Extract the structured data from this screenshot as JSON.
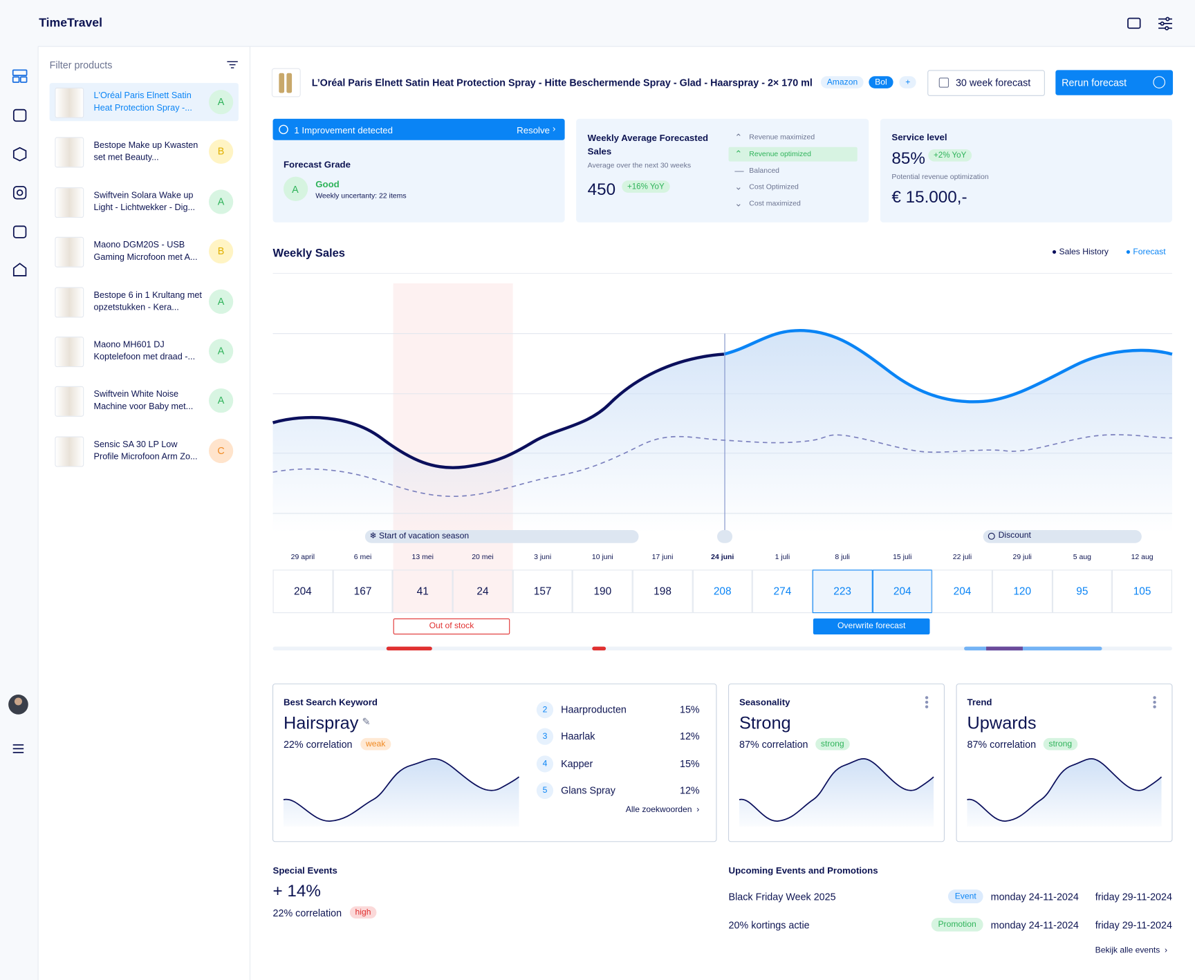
{
  "app": {
    "name": "TimeTravel"
  },
  "sidebar": {
    "filter_label": "Filter products",
    "products": [
      {
        "name": "L'Oréal Paris Elnett Satin Heat Protection Spray -...",
        "grade": "A"
      },
      {
        "name": "Bestope Make up Kwasten set met Beauty...",
        "grade": "B"
      },
      {
        "name": "Swiftvein Solara Wake up Light - Lichtwekker - Dig...",
        "grade": "A"
      },
      {
        "name": "Maono DGM20S - USB Gaming Microfoon met A...",
        "grade": "B"
      },
      {
        "name": "Bestope 6 in 1 Krultang met opzetstukken - Kera...",
        "grade": "A"
      },
      {
        "name": "Maono MH601 DJ Koptelefoon met draad -...",
        "grade": "A"
      },
      {
        "name": "Swiftvein White Noise Machine voor Baby met...",
        "grade": "A"
      },
      {
        "name": "Sensic SA 30 LP Low Profile Microfoon Arm Zo...",
        "grade": "C"
      }
    ]
  },
  "product": {
    "title": "L’Oréal Paris Elnett Satin Heat Protection Spray - Hitte Beschermende Spray - Glad - Haarspray - 2× 170 ml",
    "channels": [
      "Amazon",
      "Bol",
      "+"
    ],
    "horizon": "30 week forecast",
    "rerun": "Rerun forecast"
  },
  "grade_card": {
    "banner": "1 Improvement detected",
    "action": "Resolve",
    "label": "Forecast Grade",
    "grade": "A",
    "grade_text": "Good",
    "uncertainty": "Weekly uncertanty: 22 items"
  },
  "sales_card": {
    "title": "Weekly Average Forecasted Sales",
    "subtitle": "Average over the next 30 weeks",
    "value": 450,
    "change": "+16%  YoY",
    "options": [
      "Revenue maximized",
      "Revenue optimized",
      "Balanced",
      "Cost Optimized",
      "Cost maximized"
    ]
  },
  "service_card": {
    "title": "Service level",
    "value": "85%",
    "change": "+2%  YoY",
    "note": "Potential revenue optimization",
    "revenue": "€ 15.000,-"
  },
  "chart": {
    "title": "Weekly Sales",
    "legend": [
      "Sales History",
      "Forecast"
    ],
    "events": [
      "Start of vacation season",
      "Discount"
    ],
    "weeks": [
      "29 april",
      "6 mei",
      "13 mei",
      "20 mei",
      "3 juni",
      "10 juni",
      "17 juni",
      "24 juni",
      "1 juli",
      "8 juli",
      "15 juli",
      "22 juli",
      "29 juli",
      "5 aug",
      "12 aug"
    ],
    "values": [
      204,
      167,
      41,
      24,
      157,
      190,
      198,
      208,
      274,
      223,
      204,
      204,
      120,
      95,
      105
    ],
    "out_of_stock": "Out of stock",
    "overwrite": "Overwrite forecast"
  },
  "keyword_card": {
    "label": "Best Search Keyword",
    "keyword": "Hairspray",
    "correlation": "22% correlation",
    "strength": "weak",
    "list": [
      {
        "rank": 2,
        "name": "Haarproducten",
        "share": "15%"
      },
      {
        "rank": 3,
        "name": "Haarlak",
        "share": "12%"
      },
      {
        "rank": 4,
        "name": "Kapper",
        "share": "15%"
      },
      {
        "rank": 5,
        "name": "Glans Spray",
        "share": "12%"
      }
    ],
    "more": "Alle zoekwoorden"
  },
  "seasonality_card": {
    "label": "Seasonality",
    "value": "Strong",
    "correlation": "87% correlation",
    "strength": "strong"
  },
  "trend_card": {
    "label": "Trend",
    "value": "Upwards",
    "correlation": "87% correlation",
    "strength": "strong"
  },
  "special_events": {
    "label": "Special Events",
    "value": "+ 14%",
    "correlation": "22% correlation",
    "strength": "high"
  },
  "upcoming": {
    "title": "Upcoming Events and Promotions",
    "items": [
      {
        "name": "Black Friday Week 2025",
        "tag": "Event",
        "start": "monday 24-11-2024",
        "end": "friday 29-11-2024"
      },
      {
        "name": "20% kortings actie",
        "tag": "Promotion",
        "start": "monday 24-11-2024",
        "end": "friday 29-11-2024"
      }
    ],
    "more": "Bekijk alle events"
  }
}
